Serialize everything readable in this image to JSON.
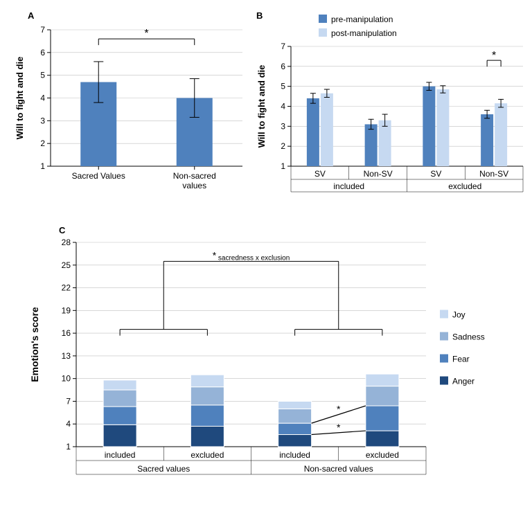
{
  "colors": {
    "bar_dark": "#4f81bd",
    "pre": "#4f81bd",
    "post": "#c6d9f1",
    "joy": "#c6d9f1",
    "sadness": "#95b3d7",
    "fear": "#4f81bd",
    "anger": "#1f497d",
    "axis": "#000000",
    "grid": "#bfbfbf",
    "white": "#ffffff"
  },
  "panelA": {
    "label": "A",
    "ylabel": "Will to fight and die",
    "ylabel_weight": "bold",
    "ylim": [
      1,
      7
    ],
    "ytick_step": 1,
    "categories": [
      "Sacred Values",
      "Non-sacred values"
    ],
    "values": [
      4.7,
      4.0
    ],
    "err": [
      0.9,
      0.85
    ],
    "bar_color": "#4f81bd",
    "sig_marker": "*",
    "sig_y": 6.6
  },
  "panelB": {
    "label": "B",
    "ylabel": "Will to fight and die",
    "ylabel_weight": "bold",
    "ylim": [
      1,
      7
    ],
    "ytick_step": 1,
    "legend": {
      "pre": "pre-manipulation",
      "post": "post-manipulation"
    },
    "groups": [
      {
        "super": "included",
        "cats": [
          {
            "label": "SV",
            "pre": 4.4,
            "post": 4.65,
            "pre_err": 0.25,
            "post_err": 0.2
          },
          {
            "label": "Non-SV",
            "pre": 3.1,
            "post": 3.3,
            "pre_err": 0.25,
            "post_err": 0.3
          }
        ]
      },
      {
        "super": "excluded",
        "cats": [
          {
            "label": "SV",
            "pre": 5.0,
            "post": 4.85,
            "pre_err": 0.2,
            "post_err": 0.18
          },
          {
            "label": "Non-SV",
            "pre": 3.6,
            "post": 4.15,
            "pre_err": 0.2,
            "post_err": 0.2
          }
        ]
      }
    ],
    "sig_marker": "*",
    "sig_target": 3,
    "sig_y": 6.3
  },
  "panelC": {
    "label": "C",
    "ylabel": "Emotion's score",
    "ylabel_weight": "bold",
    "ylim": [
      1,
      28
    ],
    "ytick_step": 3,
    "legend": [
      {
        "name": "Joy",
        "color": "#c6d9f1"
      },
      {
        "name": "Sadness",
        "color": "#95b3d7"
      },
      {
        "name": "Fear",
        "color": "#4f81bd"
      },
      {
        "name": "Anger",
        "color": "#1f497d"
      }
    ],
    "interaction_label": "* sacredness x exclusion",
    "interaction_y": 25.5,
    "groups": [
      {
        "super": "Sacred values",
        "cats": [
          {
            "label": "included",
            "anger": 2.9,
            "fear": 2.4,
            "sadness": 2.2,
            "joy": 1.3
          },
          {
            "label": "excluded",
            "anger": 2.7,
            "fear": 2.8,
            "sadness": 2.4,
            "joy": 1.6
          }
        ]
      },
      {
        "super": "Non-sacred values",
        "cats": [
          {
            "label": "included",
            "anger": 1.6,
            "fear": 1.5,
            "sadness": 1.9,
            "joy": 1.0
          },
          {
            "label": "excluded",
            "anger": 2.1,
            "fear": 3.3,
            "sadness": 2.6,
            "joy": 1.6
          }
        ]
      }
    ],
    "sig_lines": [
      {
        "group": 1,
        "level": "fear_top",
        "label": "*"
      },
      {
        "group": 1,
        "level": "anger_top",
        "label": "*"
      }
    ]
  }
}
